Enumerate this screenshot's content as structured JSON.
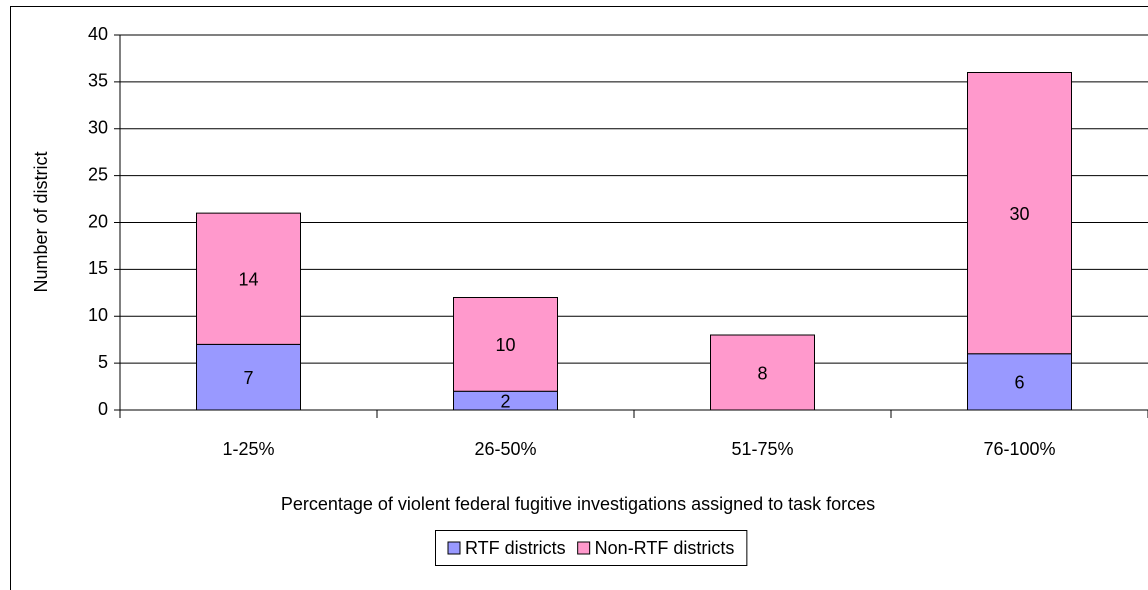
{
  "chart_data": {
    "type": "stacked-bar",
    "categories": [
      "1-25%",
      "26-50%",
      "51-75%",
      "76-100%"
    ],
    "series": [
      {
        "name": "RTF districts",
        "color": "#9999ff",
        "values": [
          7,
          2,
          0,
          6
        ]
      },
      {
        "name": "Non-RTF districts",
        "color": "#ff99cc",
        "values": [
          14,
          10,
          8,
          30
        ]
      }
    ],
    "xlabel": "Percentage of violent federal fugitive investigations assigned to task forces",
    "ylabel": "Number of district",
    "ylim": [
      0,
      40
    ],
    "yticks": [
      0,
      5,
      10,
      15,
      20,
      25,
      30,
      35,
      40
    ],
    "grid": true,
    "legend": "bottom"
  }
}
